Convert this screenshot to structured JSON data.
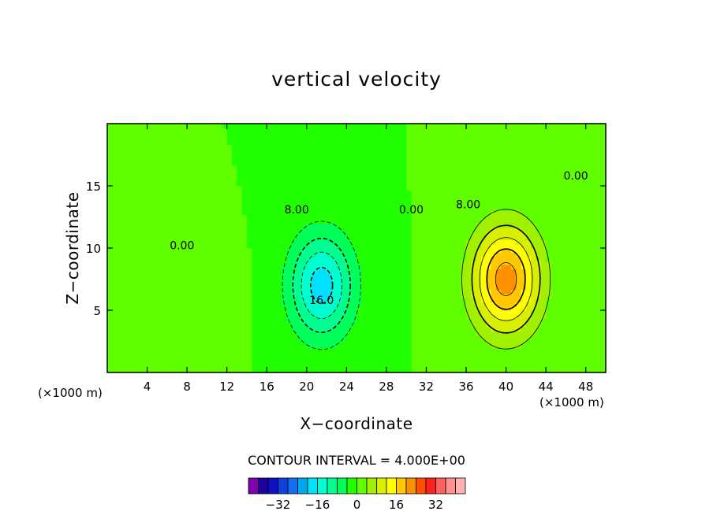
{
  "chart_data": {
    "type": "heatmap",
    "title": "vertical velocity",
    "xlabel": "X−coordinate",
    "ylabel": "Z−coordinate",
    "x_unit_label": "(×1000 m)",
    "xlim": [
      0,
      50
    ],
    "ylim": [
      0,
      20
    ],
    "x_ticks": [
      4,
      8,
      12,
      16,
      20,
      24,
      28,
      32,
      36,
      40,
      44,
      48
    ],
    "y_ticks": [
      5,
      10,
      15
    ],
    "contour_interval_text": "CONTOUR INTERVAL = 4.000E+00",
    "contour_interval": 4,
    "contour_labels": [
      {
        "text": "0.00",
        "x": 7.5,
        "z": 9.9
      },
      {
        "text": "8.00",
        "x": 19,
        "z": 12.8
      },
      {
        "text": "16.0",
        "x": 21.5,
        "z": 5.5
      },
      {
        "text": "0.00",
        "x": 30.5,
        "z": 12.8
      },
      {
        "text": "8.00",
        "x": 36.2,
        "z": 13.2
      },
      {
        "text": "0.00",
        "x": 47,
        "z": 15.5
      }
    ],
    "field_features": [
      {
        "kind": "downdraft",
        "center_x": 21.5,
        "center_z": 7,
        "min_value": -18
      },
      {
        "kind": "updraft",
        "center_x": 40,
        "center_z": 7.5,
        "max_value": 22
      }
    ],
    "colorbar": {
      "colors": [
        "#8000b0",
        "#2000a0",
        "#1010c0",
        "#1040e0",
        "#1070f0",
        "#00a8f0",
        "#00e0ff",
        "#00ffd0",
        "#00ff90",
        "#00ff58",
        "#20ff00",
        "#60ff00",
        "#a0f000",
        "#d8f000",
        "#ffff00",
        "#ffc800",
        "#ff9000",
        "#ff5000",
        "#ff2020",
        "#ff6060",
        "#ff9090",
        "#ffb0b0"
      ],
      "tick_labels": [
        "−32",
        "−16",
        "0",
        "16",
        "32"
      ]
    }
  }
}
